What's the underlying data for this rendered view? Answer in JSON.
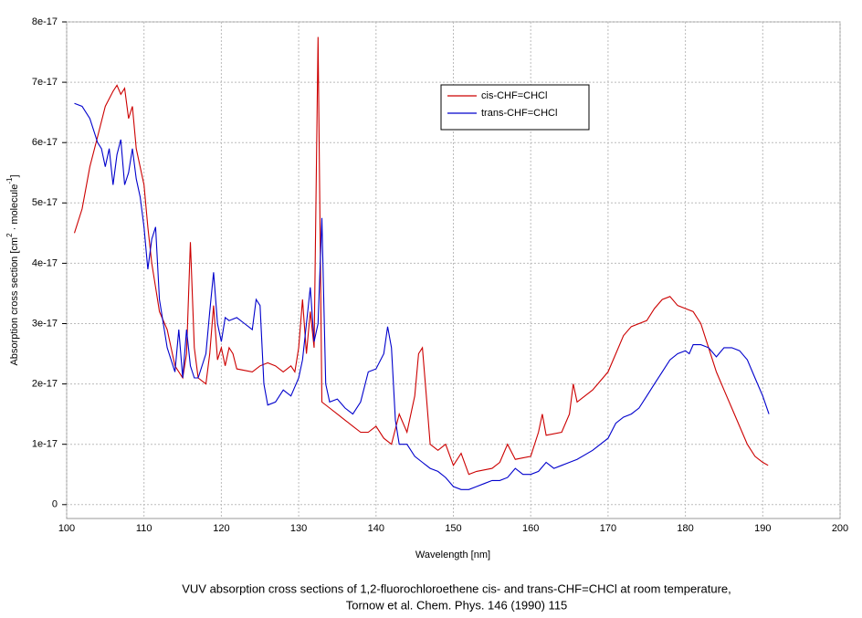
{
  "chart_data": {
    "type": "line",
    "xlabel": "Wavelength [nm]",
    "ylabel_parts": [
      "Absorption cross section [cm",
      "2",
      " · molecule",
      "-1",
      "]"
    ],
    "caption": [
      "VUV absorption cross sections of 1,2-fluorochloroethene  cis- and trans-CHF=CHCl at room temperature,",
      "Tornow et al. Chem. Phys. 146 (1990) 115"
    ],
    "xlim": [
      100,
      200
    ],
    "xticks": [
      100,
      110,
      120,
      130,
      140,
      150,
      160,
      170,
      180,
      190,
      200
    ],
    "ylim": [
      -2.3e-18,
      8e-17
    ],
    "yticks": [
      0,
      1e-17,
      2e-17,
      3e-17,
      4e-17,
      5e-17,
      6e-17,
      7e-17,
      8e-17
    ],
    "grid": true,
    "legend": "upper center",
    "series": [
      {
        "name": "cis-CHF=CHCl",
        "color": "#cc0000",
        "x": [
          101,
          102,
          103,
          104,
          105,
          106,
          106.5,
          107,
          107.5,
          108,
          108.5,
          109,
          110,
          110.5,
          111,
          111.5,
          112,
          113,
          114,
          115,
          115.5,
          116,
          116.5,
          117,
          118,
          118.5,
          119,
          119.5,
          120,
          120.5,
          121,
          121.5,
          122,
          124,
          125,
          126,
          127,
          128,
          129,
          129.5,
          130,
          130.5,
          131,
          131.5,
          132,
          132.5,
          133,
          134,
          135,
          136,
          137,
          138,
          139,
          140,
          141,
          142,
          143,
          144,
          145,
          145.5,
          146,
          146.5,
          147,
          148,
          149,
          150,
          151,
          152,
          153,
          155,
          156,
          157,
          158,
          160,
          161,
          161.5,
          162,
          164,
          165,
          165.5,
          166,
          168,
          170,
          171,
          172,
          173,
          175,
          176,
          177,
          178,
          179,
          180,
          181,
          182,
          183,
          184,
          185,
          186,
          187,
          188,
          189,
          190,
          190.7
        ],
        "values": [
          4.5e-17,
          4.9e-17,
          5.6e-17,
          6.1e-17,
          6.6e-17,
          6.85e-17,
          6.95e-17,
          6.8e-17,
          6.9e-17,
          6.4e-17,
          6.6e-17,
          5.9e-17,
          5.3e-17,
          4.6e-17,
          4e-17,
          3.6e-17,
          3.2e-17,
          2.9e-17,
          2.3e-17,
          2.1e-17,
          2.5e-17,
          4.35e-17,
          2.6e-17,
          2.1e-17,
          2e-17,
          2.5e-17,
          3.3e-17,
          2.4e-17,
          2.6e-17,
          2.3e-17,
          2.6e-17,
          2.5e-17,
          2.25e-17,
          2.2e-17,
          2.3e-17,
          2.35e-17,
          2.3e-17,
          2.2e-17,
          2.3e-17,
          2.2e-17,
          2.6e-17,
          3.4e-17,
          2.5e-17,
          3.2e-17,
          2.6e-17,
          7.75e-17,
          1.7e-17,
          1.6e-17,
          1.5e-17,
          1.4e-17,
          1.3e-17,
          1.2e-17,
          1.2e-17,
          1.3e-17,
          1.1e-17,
          1e-17,
          1.5e-17,
          1.2e-17,
          1.8e-17,
          2.5e-17,
          2.6e-17,
          1.8e-17,
          1e-17,
          9e-18,
          1e-17,
          6.5e-18,
          8.5e-18,
          5e-18,
          5.5e-18,
          6e-18,
          7e-18,
          1e-17,
          7.5e-18,
          8e-18,
          1.2e-17,
          1.5e-17,
          1.15e-17,
          1.2e-17,
          1.5e-17,
          2e-17,
          1.7e-17,
          1.9e-17,
          2.2e-17,
          2.5e-17,
          2.8e-17,
          2.95e-17,
          3.05e-17,
          3.25e-17,
          3.4e-17,
          3.45e-17,
          3.3e-17,
          3.25e-17,
          3.2e-17,
          3e-17,
          2.6e-17,
          2.2e-17,
          1.9e-17,
          1.6e-17,
          1.3e-17,
          1e-17,
          8e-18,
          7e-18,
          6.5e-18
        ]
      },
      {
        "name": "trans-CHF=CHCl",
        "color": "#0000cc",
        "x": [
          101,
          102,
          103,
          104,
          104.5,
          105,
          105.5,
          106,
          106.5,
          107,
          107.5,
          108,
          108.5,
          109,
          109.5,
          110,
          110.5,
          111,
          111.5,
          112,
          113,
          114,
          114.5,
          115,
          115.5,
          116,
          116.5,
          117,
          118,
          118.5,
          119,
          119.5,
          120,
          120.5,
          121,
          122,
          123,
          124,
          124.5,
          125,
          125.5,
          126,
          127,
          128,
          129,
          130,
          130.5,
          131,
          131.5,
          132,
          132.5,
          133,
          133.5,
          134,
          135,
          136,
          137,
          138,
          139,
          140,
          141,
          141.5,
          142,
          142.5,
          143,
          144,
          145,
          146,
          147,
          148,
          149,
          150,
          151,
          152,
          153,
          154,
          155,
          156,
          157,
          158,
          159,
          160,
          161,
          162,
          163,
          164,
          165,
          166,
          168,
          170,
          171,
          172,
          173,
          174,
          175,
          176,
          177,
          178,
          179,
          180,
          180.5,
          181,
          182,
          183,
          184,
          185,
          186,
          187,
          188,
          189,
          190,
          190.8
        ],
        "values": [
          6.65e-17,
          6.6e-17,
          6.4e-17,
          6e-17,
          5.9e-17,
          5.6e-17,
          5.9e-17,
          5.3e-17,
          5.8e-17,
          6.05e-17,
          5.3e-17,
          5.5e-17,
          5.9e-17,
          5.4e-17,
          5.1e-17,
          4.6e-17,
          3.9e-17,
          4.4e-17,
          4.6e-17,
          3.4e-17,
          2.6e-17,
          2.2e-17,
          2.9e-17,
          2.1e-17,
          2.9e-17,
          2.3e-17,
          2.1e-17,
          2.1e-17,
          2.5e-17,
          3.2e-17,
          3.85e-17,
          3e-17,
          2.7e-17,
          3.1e-17,
          3.05e-17,
          3.1e-17,
          3e-17,
          2.9e-17,
          3.4e-17,
          3.3e-17,
          2e-17,
          1.65e-17,
          1.7e-17,
          1.9e-17,
          1.8e-17,
          2.1e-17,
          2.4e-17,
          3e-17,
          3.6e-17,
          2.7e-17,
          3e-17,
          4.75e-17,
          2e-17,
          1.7e-17,
          1.75e-17,
          1.6e-17,
          1.5e-17,
          1.7e-17,
          2.2e-17,
          2.25e-17,
          2.5e-17,
          2.95e-17,
          2.6e-17,
          1.4e-17,
          1e-17,
          1e-17,
          8e-18,
          7e-18,
          6e-18,
          5.5e-18,
          4.5e-18,
          3e-18,
          2.5e-18,
          2.5e-18,
          3e-18,
          3.5e-18,
          4e-18,
          4e-18,
          4.5e-18,
          6e-18,
          5e-18,
          5e-18,
          5.5e-18,
          7e-18,
          6e-18,
          6.5e-18,
          7e-18,
          7.5e-18,
          9e-18,
          1.1e-17,
          1.35e-17,
          1.45e-17,
          1.5e-17,
          1.6e-17,
          1.8e-17,
          2e-17,
          2.2e-17,
          2.4e-17,
          2.5e-17,
          2.55e-17,
          2.5e-17,
          2.65e-17,
          2.65e-17,
          2.6e-17,
          2.45e-17,
          2.6e-17,
          2.6e-17,
          2.55e-17,
          2.4e-17,
          2.1e-17,
          1.8e-17,
          1.5e-17
        ]
      }
    ]
  }
}
